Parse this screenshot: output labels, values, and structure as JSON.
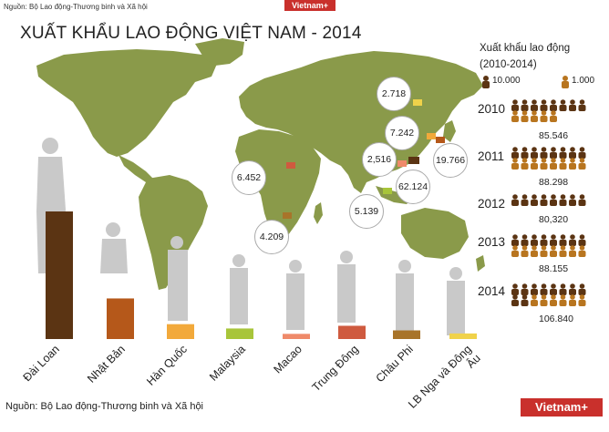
{
  "header": {
    "source_small": "Nguồn: Bộ Lao động-Thương binh và Xã hội",
    "logo_small": "Vietnam+"
  },
  "title": "XUẤT KHẨU LAO ĐỘNG VIỆT NAM - 2014",
  "legend": {
    "title_line1": "Xuất khẩu lao động",
    "title_line2": "(2010-2014)",
    "big_unit": "10.000",
    "small_unit": "1.000",
    "big_color": "#5b3413",
    "small_color": "#b8751f"
  },
  "yearly": [
    {
      "year": "2010",
      "total": "85.546",
      "big": 8,
      "small": 5
    },
    {
      "year": "2011",
      "total": "88.298",
      "big": 8,
      "small": 8
    },
    {
      "year": "2012",
      "total": "80,320",
      "big": 8,
      "small": 0
    },
    {
      "year": "2013",
      "total": "88.155",
      "big": 8,
      "small": 8
    },
    {
      "year": "2014",
      "total": "106.840",
      "big": 10,
      "small": 6
    }
  ],
  "map_bubbles": [
    {
      "label": "2.718"
    },
    {
      "label": "7.242"
    },
    {
      "label": "2,516"
    },
    {
      "label": "19.766"
    },
    {
      "label": "62.124"
    },
    {
      "label": "6.452"
    },
    {
      "label": "5.139"
    },
    {
      "label": "4.209"
    }
  ],
  "chart_data": {
    "type": "bar",
    "categories": [
      "Đài Loan",
      "Nhật Bản",
      "Hàn Quốc",
      "Malaysia",
      "Macao",
      "Trung Đông",
      "Châu Phi",
      "LB Nga và Đông Âu"
    ],
    "values": [
      62124,
      19766,
      7242,
      5139,
      2516,
      6452,
      4209,
      2718
    ],
    "colors": [
      "#5b3413",
      "#b5581a",
      "#f2a93b",
      "#a8c53a",
      "#ef8a6a",
      "#cf5a3f",
      "#a8742a",
      "#f0d24a"
    ]
  },
  "footer": {
    "source": "Nguồn: Bộ Lao động-Thương binh và Xã hội",
    "logo": "Vietnam+"
  }
}
